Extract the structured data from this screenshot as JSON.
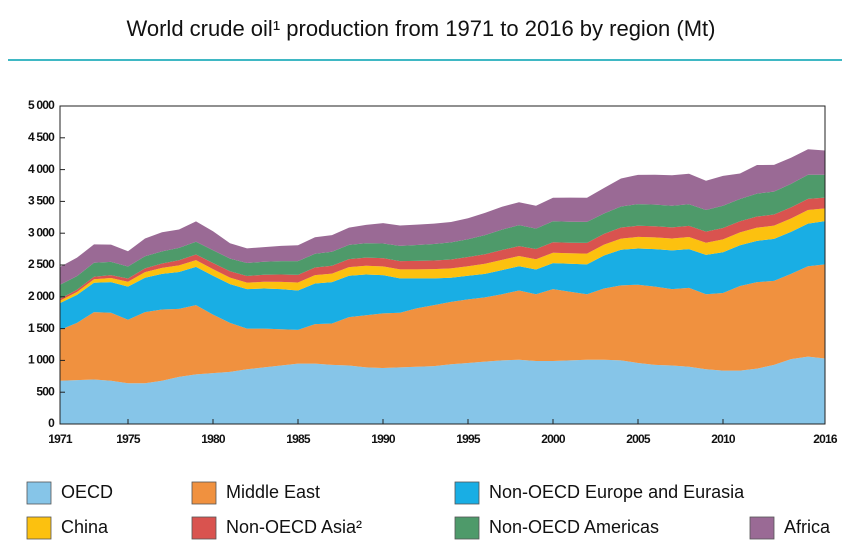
{
  "chart_data": {
    "type": "stacked_area",
    "title": "World crude oil¹ production from 1971 to 2016 by region (Mt)",
    "x": [
      1971,
      1972,
      1973,
      1974,
      1975,
      1976,
      1977,
      1978,
      1979,
      1980,
      1981,
      1982,
      1983,
      1984,
      1985,
      1986,
      1987,
      1988,
      1989,
      1990,
      1991,
      1992,
      1993,
      1994,
      1995,
      1996,
      1997,
      1998,
      1999,
      2000,
      2001,
      2002,
      2003,
      2004,
      2005,
      2006,
      2007,
      2008,
      2009,
      2010,
      2011,
      2012,
      2013,
      2014,
      2015,
      2016
    ],
    "xlim": [
      1971,
      2016
    ],
    "xticks": [
      1971,
      1975,
      1980,
      1985,
      1990,
      1995,
      2000,
      2005,
      2010,
      2016
    ],
    "ylim": [
      0,
      5000
    ],
    "yticks": [
      0,
      500,
      {
        "value": 1000,
        "label": "1 000"
      },
      {
        "value": 1500,
        "label": "1 500"
      },
      {
        "value": 2000,
        "label": "2 000"
      },
      {
        "value": 2500,
        "label": "2 500"
      },
      {
        "value": 3000,
        "label": "3 000"
      },
      {
        "value": 3500,
        "label": "3 500"
      },
      {
        "value": 4000,
        "label": "4 000"
      },
      {
        "value": 4500,
        "label": "4 500"
      },
      {
        "value": 5000,
        "label": "5 000"
      }
    ],
    "series": [
      {
        "name": "OECD",
        "color": "#86c5e8",
        "values": [
          680,
          690,
          700,
          680,
          640,
          640,
          680,
          740,
          780,
          800,
          820,
          860,
          890,
          920,
          950,
          950,
          930,
          920,
          890,
          880,
          890,
          900,
          910,
          940,
          960,
          980,
          1000,
          1010,
          990,
          990,
          1000,
          1010,
          1010,
          1000,
          960,
          930,
          920,
          900,
          860,
          840,
          840,
          870,
          930,
          1020,
          1060,
          1030
        ]
      },
      {
        "name": "Middle East",
        "color": "#f0913f",
        "values": [
          800,
          900,
          1060,
          1070,
          1000,
          1120,
          1120,
          1070,
          1090,
          920,
          770,
          640,
          610,
          570,
          530,
          620,
          650,
          760,
          820,
          860,
          860,
          920,
          960,
          980,
          1000,
          1010,
          1040,
          1090,
          1050,
          1130,
          1080,
          1030,
          1120,
          1180,
          1230,
          1230,
          1200,
          1240,
          1180,
          1220,
          1330,
          1360,
          1320,
          1340,
          1420,
          1480
        ]
      },
      {
        "name": "Non-OECD Europe and Eurasia",
        "color": "#19aee4",
        "values": [
          420,
          440,
          460,
          480,
          520,
          540,
          560,
          580,
          600,
          610,
          610,
          620,
          630,
          630,
          620,
          640,
          650,
          650,
          640,
          600,
          540,
          470,
          420,
          380,
          370,
          370,
          380,
          380,
          390,
          410,
          440,
          470,
          520,
          560,
          570,
          590,
          610,
          610,
          620,
          640,
          640,
          650,
          660,
          660,
          670,
          680
        ]
      },
      {
        "name": "China",
        "color": "#fcc10f",
        "values": [
          40,
          45,
          55,
          65,
          77,
          87,
          94,
          104,
          106,
          106,
          101,
          102,
          106,
          115,
          125,
          131,
          134,
          137,
          138,
          138,
          141,
          142,
          145,
          146,
          150,
          159,
          161,
          161,
          161,
          163,
          165,
          168,
          170,
          175,
          182,
          185,
          187,
          190,
          189,
          203,
          203,
          207,
          209,
          211,
          215,
          200
        ]
      },
      {
        "name": "Non-OECD Asia²",
        "color": "#d9534f",
        "values": [
          30,
          35,
          40,
          45,
          50,
          60,
          70,
          80,
          90,
          95,
          100,
          105,
          110,
          115,
          120,
          120,
          125,
          125,
          128,
          130,
          130,
          132,
          135,
          140,
          145,
          150,
          155,
          155,
          160,
          165,
          165,
          170,
          170,
          175,
          175,
          175,
          175,
          175,
          175,
          178,
          175,
          175,
          175,
          175,
          175,
          170
        ]
      },
      {
        "name": "Non-OECD Americas",
        "color": "#4e9a6a",
        "values": [
          220,
          215,
          220,
          210,
          190,
          190,
          190,
          195,
          200,
          200,
          200,
          205,
          205,
          210,
          215,
          215,
          220,
          225,
          225,
          230,
          240,
          250,
          260,
          270,
          280,
          300,
          320,
          330,
          320,
          330,
          330,
          330,
          320,
          330,
          340,
          340,
          340,
          340,
          340,
          350,
          350,
          360,
          360,
          370,
          380,
          360
        ]
      },
      {
        "name": "Africa",
        "color": "#9a6a95",
        "values": [
          280,
          290,
          290,
          270,
          240,
          280,
          300,
          290,
          320,
          300,
          240,
          230,
          230,
          240,
          250,
          260,
          260,
          270,
          290,
          320,
          320,
          320,
          320,
          320,
          330,
          350,
          360,
          360,
          360,
          370,
          380,
          380,
          400,
          440,
          460,
          470,
          480,
          480,
          460,
          470,
          400,
          450,
          420,
          410,
          400,
          380
        ]
      }
    ]
  }
}
